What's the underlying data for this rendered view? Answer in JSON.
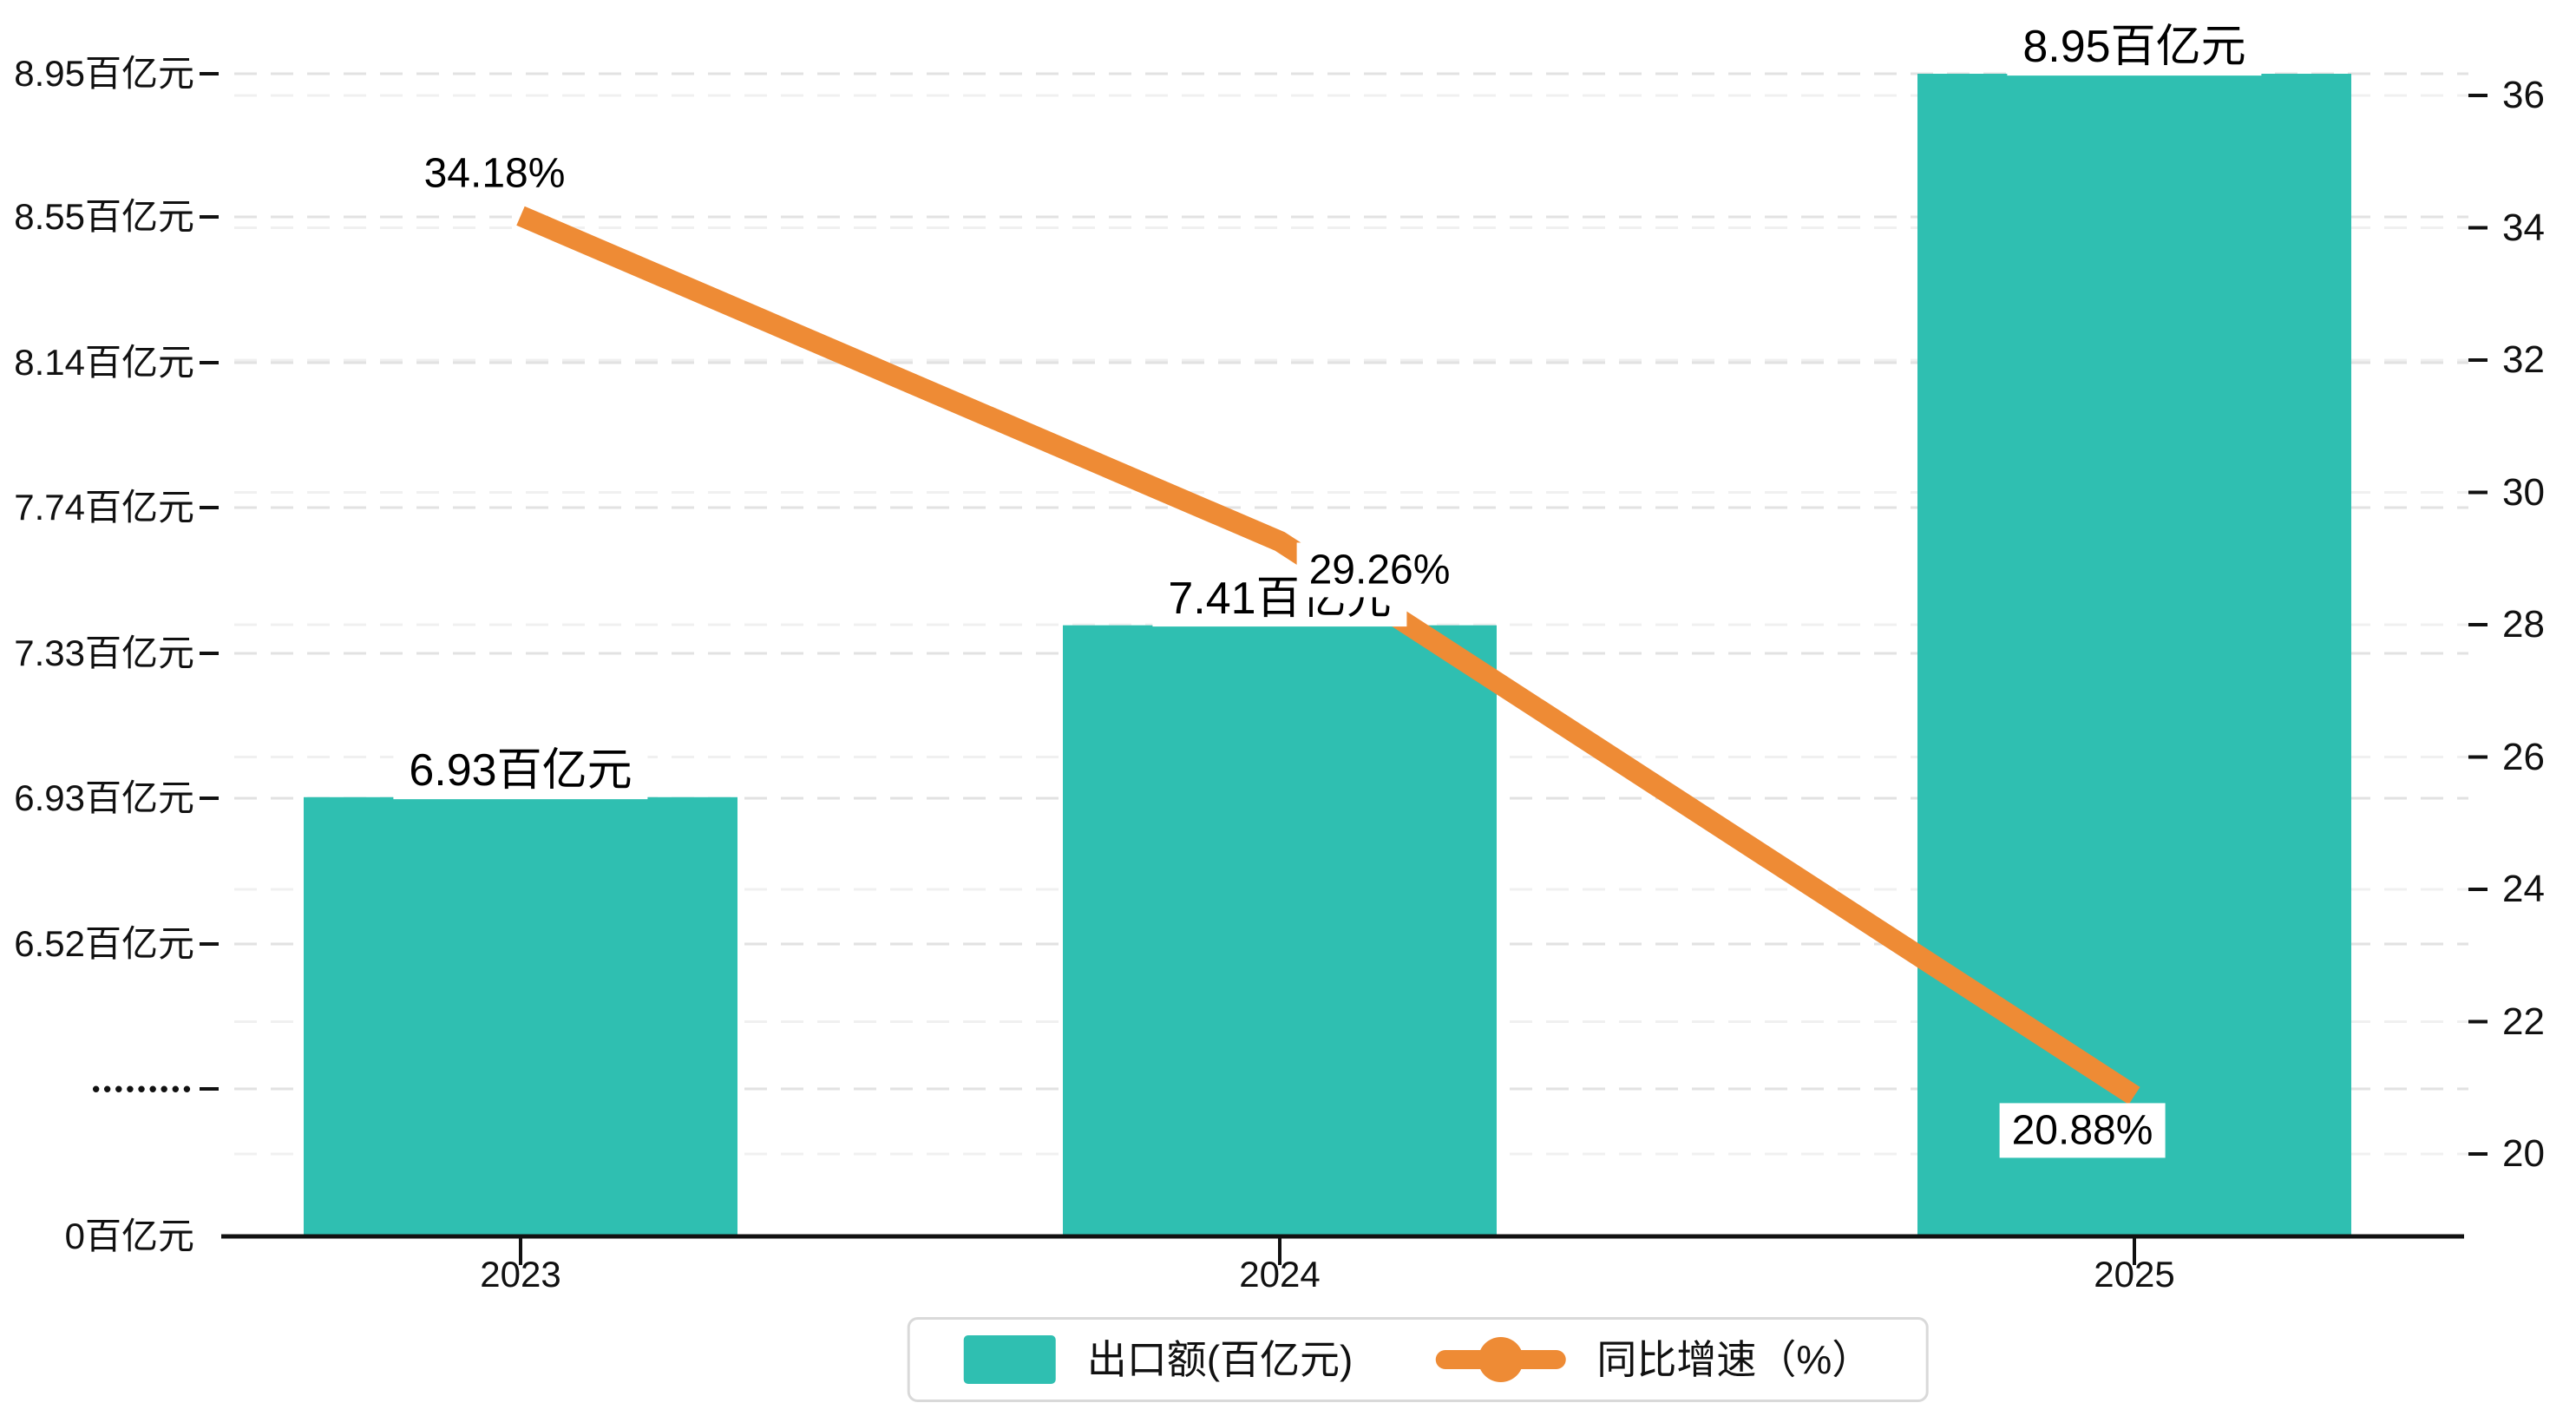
{
  "chart_data": {
    "type": "bar",
    "combo": "bar+line",
    "categories": [
      "2023",
      "2024",
      "2025"
    ],
    "series": [
      {
        "name": "出口额(百亿元)",
        "type": "bar",
        "axis": "left",
        "values": [
          6.93,
          7.41,
          8.95
        ],
        "data_labels": [
          "6.93百亿元",
          "7.41百亿元",
          "8.95百亿元"
        ],
        "color": "#2fbfb1"
      },
      {
        "name": "同比增速（%）",
        "type": "line",
        "axis": "right",
        "values": [
          34.18,
          29.26,
          20.88
        ],
        "data_labels": [
          "34.18%",
          "29.26%",
          "20.88%"
        ],
        "color": "#ee8b35"
      }
    ],
    "left_axis": {
      "tick_labels": [
        "8.95百亿元",
        "8.55百亿元",
        "8.14百亿元",
        "7.74百亿元",
        "7.33百亿元",
        "6.93百亿元",
        "6.52百亿元",
        "•••••••••",
        "0百亿元"
      ],
      "tick_values": [
        8.95,
        8.55,
        8.14,
        7.74,
        7.33,
        6.93,
        6.52,
        null,
        0
      ],
      "axis_break": true
    },
    "right_axis": {
      "tick_labels": [
        "36",
        "34",
        "32",
        "30",
        "28",
        "26",
        "24",
        "22",
        "20"
      ],
      "tick_values": [
        36,
        34,
        32,
        30,
        28,
        26,
        24,
        22,
        20
      ],
      "min": 20,
      "max": 36
    },
    "grid": true,
    "legend_position": "bottom",
    "legend": [
      {
        "label": "出口额(百亿元)",
        "swatch": "bar"
      },
      {
        "label": "同比增速（%）",
        "swatch": "line"
      }
    ],
    "colors": {
      "bar": "#2fbfb1",
      "line": "#ee8b35",
      "grid_left": "#e2e2e2",
      "grid_right": "#f0f0f0",
      "axis": "#111111",
      "legend_border": "#d9d9d9",
      "label_background": "#ffffff"
    }
  }
}
